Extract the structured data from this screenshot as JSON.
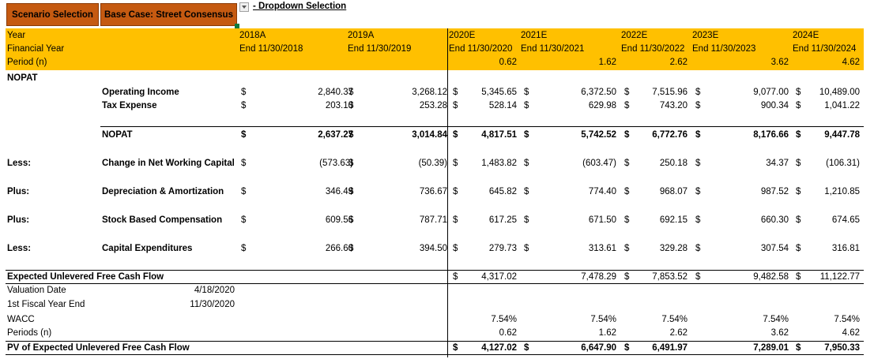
{
  "toolbar": {
    "scenario_button": "Scenario Selection",
    "scenario_value": "Base Case: Street Consensus",
    "dropdown_label": "- Dropdown Selection"
  },
  "header": {
    "row_labels": [
      "Year",
      "Financial Year",
      "Period (n)"
    ],
    "years": [
      "2018A",
      "2019A",
      "2020E",
      "2021E",
      "2022E",
      "2023E",
      "2024E"
    ],
    "fy_ends": [
      "End 11/30/2018",
      "End 11/30/2019",
      "End 11/30/2020",
      "End 11/30/2021",
      "End 11/30/2022",
      "End 11/30/2023",
      "End 11/30/2024"
    ],
    "periods": [
      "0.62",
      "1.62",
      "2.62",
      "3.62",
      "4.62"
    ]
  },
  "section_title": "NOPAT",
  "currency": "$",
  "rows": {
    "operating_income": {
      "label": "Operating Income",
      "values": [
        "2,840.37",
        "3,268.12",
        "5,345.65",
        "6,372.50",
        "7,515.96",
        "9,077.00",
        "10,489.00"
      ]
    },
    "tax_expense": {
      "label": "Tax Expense",
      "values": [
        "203.10",
        "253.28",
        "528.14",
        "629.98",
        "743.20",
        "900.34",
        "1,041.22"
      ]
    },
    "nopat": {
      "label": "NOPAT",
      "values": [
        "2,637.27",
        "3,014.84",
        "4,817.51",
        "5,742.52",
        "6,772.76",
        "8,176.66",
        "9,447.78"
      ]
    },
    "nwc": {
      "prefix": "Less:",
      "label": "Change in Net Working Capital",
      "values": [
        "(573.63)",
        "(50.39)",
        "1,483.82",
        "(603.47)",
        "250.18",
        "34.37",
        "(106.31)"
      ]
    },
    "dna": {
      "prefix": "Plus:",
      "label": "Depreciation & Amortization",
      "values": [
        "346.49",
        "736.67",
        "645.82",
        "774.40",
        "968.07",
        "987.52",
        "1,210.85"
      ]
    },
    "sbc": {
      "prefix": "Plus:",
      "label": "Stock Based Compensation",
      "values": [
        "609.56",
        "787.71",
        "617.25",
        "671.50",
        "692.15",
        "660.30",
        "674.65"
      ]
    },
    "capex": {
      "prefix": "Less:",
      "label": "Capital Expenditures",
      "values": [
        "266.60",
        "394.50",
        "279.73",
        "313.61",
        "329.28",
        "307.54",
        "316.81"
      ]
    }
  },
  "fcf": {
    "label": "Expected Unlevered Free Cash Flow",
    "values": [
      "4,317.02",
      "7,478.29",
      "7,853.52",
      "9,482.58",
      "11,122.77"
    ]
  },
  "valuation": {
    "valuation_date_label": "Valuation Date",
    "valuation_date": "4/18/2020",
    "fy_end_label": "1st Fiscal Year End",
    "fy_end": "11/30/2020",
    "wacc_label": "WACC",
    "wacc": [
      "7.54%",
      "7.54%",
      "7.54%",
      "7.54%",
      "7.54%"
    ],
    "periods_label": "Periods (n)",
    "periods": [
      "0.62",
      "1.62",
      "2.62",
      "3.62",
      "4.62"
    ]
  },
  "pv": {
    "label": "PV of Expected Unlevered Free Cash Flow",
    "values": [
      "4,127.02",
      "6,647.90",
      "6,491.97",
      "7,289.01",
      "7,950.33"
    ]
  },
  "colors": {
    "header_fill": "#ffc000",
    "button_fill": "#c55a11"
  }
}
